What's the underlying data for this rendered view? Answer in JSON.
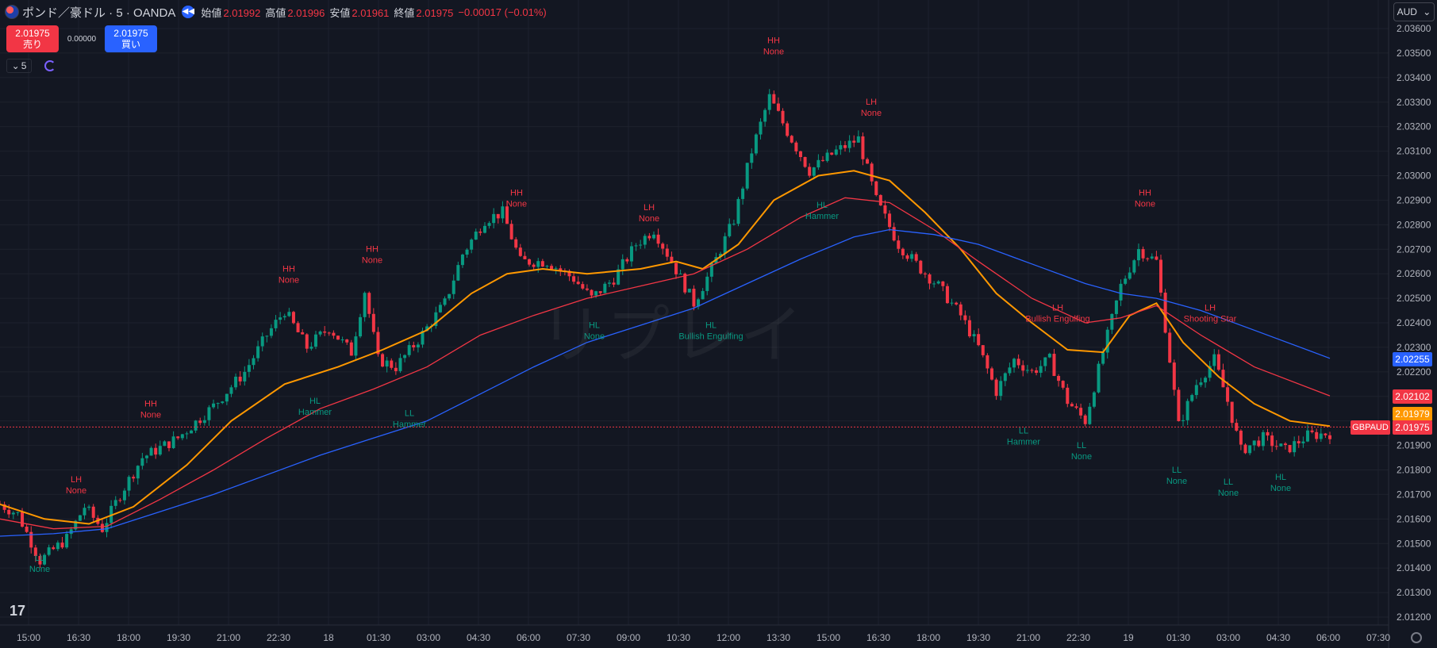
{
  "header": {
    "symbol_title": "ポンド／豪ドル · 5 · OANDA",
    "open_label": "始値",
    "open": "2.01992",
    "high_label": "高値",
    "high": "2.01996",
    "low_label": "安値",
    "low": "2.01961",
    "close_label": "終値",
    "close": "2.01975",
    "change": "−0.00017 (−0.01%)"
  },
  "trade": {
    "sell_price": "2.01975",
    "sell_label": "売り",
    "spread": "0.00000",
    "buy_price": "2.01975",
    "buy_label": "買い"
  },
  "interval": "5",
  "currency": "AUD",
  "watermark": "リプレイ",
  "pair_tag": "GBPAUD",
  "colors": {
    "up": "#089981",
    "down": "#f23645",
    "ema_fast": "#ff9800",
    "ma_mid": "#f23645",
    "ma_slow": "#2962ff",
    "bg": "#131722",
    "grid": "#1e222d"
  },
  "price_tags": [
    {
      "value": "2.02255",
      "color": "#2962ff"
    },
    {
      "value": "2.02102",
      "color": "#f23645"
    },
    {
      "value": "2.01979",
      "color": "#ff9800"
    },
    {
      "value": "2.01975",
      "color": "#f23645"
    }
  ],
  "chart_data": {
    "type": "candlestick",
    "symbol": "GBPAUD",
    "y_axis_ticks": [
      "2.03600",
      "2.03500",
      "2.03400",
      "2.03300",
      "2.03200",
      "2.03100",
      "2.03000",
      "2.02900",
      "2.02800",
      "2.02700",
      "2.02600",
      "2.02500",
      "2.02400",
      "2.02300",
      "2.02200",
      "2.02100",
      "2.02000",
      "2.01900",
      "2.01800",
      "2.01700",
      "2.01600",
      "2.01500",
      "2.01400",
      "2.01300",
      "2.01200"
    ],
    "ylim": [
      2.0115,
      2.0365
    ],
    "x_axis_ticks": [
      "15:00",
      "16:30",
      "18:00",
      "19:30",
      "21:00",
      "22:30",
      "18",
      "01:30",
      "03:00",
      "04:30",
      "06:00",
      "07:30",
      "09:00",
      "10:30",
      "12:00",
      "13:30",
      "15:00",
      "16:30",
      "18:00",
      "19:30",
      "21:00",
      "22:30",
      "19",
      "01:30",
      "03:00",
      "04:30",
      "06:00",
      "07:30"
    ],
    "price_path": [
      [
        0,
        2.0166
      ],
      [
        20,
        2.0162
      ],
      [
        45,
        2.0143
      ],
      [
        75,
        2.0152
      ],
      [
        95,
        2.0165
      ],
      [
        115,
        2.0156
      ],
      [
        135,
        2.017
      ],
      [
        160,
        2.0185
      ],
      [
        200,
        2.0193
      ],
      [
        240,
        2.0206
      ],
      [
        275,
        2.022
      ],
      [
        300,
        2.0235
      ],
      [
        320,
        2.0245
      ],
      [
        345,
        2.023
      ],
      [
        370,
        2.0238
      ],
      [
        395,
        2.0228
      ],
      [
        410,
        2.0253
      ],
      [
        425,
        2.0225
      ],
      [
        445,
        2.0222
      ],
      [
        470,
        2.0233
      ],
      [
        500,
        2.0248
      ],
      [
        520,
        2.0268
      ],
      [
        545,
        2.0282
      ],
      [
        565,
        2.0285
      ],
      [
        585,
        2.0265
      ],
      [
        615,
        2.0265
      ],
      [
        645,
        2.0258
      ],
      [
        665,
        2.025
      ],
      [
        690,
        2.0258
      ],
      [
        715,
        2.0272
      ],
      [
        735,
        2.0278
      ],
      [
        755,
        2.0265
      ],
      [
        780,
        2.0248
      ],
      [
        800,
        2.0262
      ],
      [
        825,
        2.0282
      ],
      [
        845,
        2.031
      ],
      [
        865,
        2.0332
      ],
      [
        885,
        2.0318
      ],
      [
        910,
        2.0302
      ],
      [
        940,
        2.031
      ],
      [
        965,
        2.0315
      ],
      [
        985,
        2.029
      ],
      [
        1010,
        2.0272
      ],
      [
        1035,
        2.0262
      ],
      [
        1055,
        2.0255
      ],
      [
        1080,
        2.0243
      ],
      [
        1100,
        2.023
      ],
      [
        1120,
        2.0212
      ],
      [
        1140,
        2.0225
      ],
      [
        1160,
        2.022
      ],
      [
        1180,
        2.0225
      ],
      [
        1200,
        2.0208
      ],
      [
        1220,
        2.02
      ],
      [
        1240,
        2.0228
      ],
      [
        1260,
        2.0255
      ],
      [
        1280,
        2.027
      ],
      [
        1300,
        2.0265
      ],
      [
        1315,
        2.0225
      ],
      [
        1325,
        2.0198
      ],
      [
        1345,
        2.0215
      ],
      [
        1365,
        2.0225
      ],
      [
        1380,
        2.0208
      ],
      [
        1395,
        2.0188
      ],
      [
        1420,
        2.0193
      ],
      [
        1445,
        2.0188
      ],
      [
        1470,
        2.0194
      ],
      [
        1495,
        2.0195
      ]
    ],
    "series": [
      {
        "name": "EMA fast",
        "color": "#ff9800",
        "points": [
          [
            0,
            2.0166
          ],
          [
            50,
            2.016
          ],
          [
            100,
            2.0158
          ],
          [
            150,
            2.0165
          ],
          [
            210,
            2.0182
          ],
          [
            260,
            2.02
          ],
          [
            320,
            2.0215
          ],
          [
            380,
            2.0222
          ],
          [
            430,
            2.0229
          ],
          [
            480,
            2.0237
          ],
          [
            530,
            2.0252
          ],
          [
            570,
            2.026
          ],
          [
            610,
            2.0262
          ],
          [
            660,
            2.026
          ],
          [
            720,
            2.0262
          ],
          [
            760,
            2.0265
          ],
          [
            790,
            2.0262
          ],
          [
            830,
            2.0272
          ],
          [
            870,
            2.029
          ],
          [
            920,
            2.03
          ],
          [
            960,
            2.0302
          ],
          [
            1000,
            2.0298
          ],
          [
            1040,
            2.0285
          ],
          [
            1080,
            2.027
          ],
          [
            1120,
            2.0252
          ],
          [
            1160,
            2.024
          ],
          [
            1200,
            2.0229
          ],
          [
            1240,
            2.0228
          ],
          [
            1270,
            2.0243
          ],
          [
            1300,
            2.0248
          ],
          [
            1330,
            2.0232
          ],
          [
            1370,
            2.0218
          ],
          [
            1410,
            2.0207
          ],
          [
            1450,
            2.02
          ],
          [
            1495,
            2.01979
          ]
        ]
      },
      {
        "name": "MA mid",
        "color": "#f23645",
        "points": [
          [
            0,
            2.016
          ],
          [
            60,
            2.0156
          ],
          [
            120,
            2.0157
          ],
          [
            180,
            2.0168
          ],
          [
            240,
            2.018
          ],
          [
            300,
            2.0193
          ],
          [
            360,
            2.0205
          ],
          [
            420,
            2.0213
          ],
          [
            480,
            2.0222
          ],
          [
            540,
            2.0235
          ],
          [
            600,
            2.0243
          ],
          [
            660,
            2.025
          ],
          [
            720,
            2.0255
          ],
          [
            780,
            2.026
          ],
          [
            840,
            2.027
          ],
          [
            900,
            2.0283
          ],
          [
            950,
            2.0291
          ],
          [
            1000,
            2.0289
          ],
          [
            1050,
            2.0278
          ],
          [
            1100,
            2.0265
          ],
          [
            1160,
            2.025
          ],
          [
            1220,
            2.024
          ],
          [
            1260,
            2.0242
          ],
          [
            1300,
            2.0247
          ],
          [
            1350,
            2.0235
          ],
          [
            1410,
            2.0222
          ],
          [
            1495,
            2.02102
          ]
        ]
      },
      {
        "name": "MA slow",
        "color": "#2962ff",
        "points": [
          [
            0,
            2.0153
          ],
          [
            60,
            2.0154
          ],
          [
            120,
            2.0156
          ],
          [
            180,
            2.0163
          ],
          [
            240,
            2.017
          ],
          [
            300,
            2.0178
          ],
          [
            360,
            2.0186
          ],
          [
            420,
            2.0193
          ],
          [
            480,
            2.02
          ],
          [
            540,
            2.0211
          ],
          [
            600,
            2.0222
          ],
          [
            660,
            2.0232
          ],
          [
            720,
            2.0239
          ],
          [
            780,
            2.0246
          ],
          [
            840,
            2.0256
          ],
          [
            900,
            2.0266
          ],
          [
            960,
            2.0275
          ],
          [
            1000,
            2.0278
          ],
          [
            1050,
            2.0276
          ],
          [
            1100,
            2.0272
          ],
          [
            1160,
            2.0264
          ],
          [
            1220,
            2.0256
          ],
          [
            1260,
            2.0252
          ],
          [
            1300,
            2.025
          ],
          [
            1350,
            2.0245
          ],
          [
            1410,
            2.0237
          ],
          [
            1495,
            2.02255
          ]
        ]
      }
    ],
    "annotations": [
      {
        "text1": "HH",
        "text2": "None",
        "bar": 975,
        "price": 2.0352,
        "color": "#f23645",
        "pos": "above"
      },
      {
        "text1": "LH",
        "text2": "None",
        "bar": 1098,
        "price": 2.0327,
        "color": "#f23645",
        "pos": "above"
      },
      {
        "text1": "HH",
        "text2": "None",
        "bar": 651,
        "price": 2.029,
        "color": "#f23645",
        "pos": "above"
      },
      {
        "text1": "LH",
        "text2": "None",
        "bar": 818,
        "price": 2.0284,
        "color": "#f23645",
        "pos": "above"
      },
      {
        "text1": "HH",
        "text2": "None",
        "bar": 1443,
        "price": 2.029,
        "color": "#f23645",
        "pos": "above"
      },
      {
        "text1": "HH",
        "text2": "None",
        "bar": 469,
        "price": 2.0267,
        "color": "#f23645",
        "pos": "above"
      },
      {
        "text1": "HH",
        "text2": "None",
        "bar": 364,
        "price": 2.0259,
        "color": "#f23645",
        "pos": "above"
      },
      {
        "text1": "HH",
        "text2": "None",
        "bar": 190,
        "price": 2.0204,
        "color": "#f23645",
        "pos": "above"
      },
      {
        "text1": "LH",
        "text2": "None",
        "bar": 96,
        "price": 2.0173,
        "color": "#f23645",
        "pos": "above"
      },
      {
        "text1": "LH",
        "text2": "Bullish Engulfing",
        "bar": 1333,
        "price": 2.0243,
        "color": "#f23645",
        "pos": "above"
      },
      {
        "text1": "LH",
        "text2": "Shooting Star",
        "bar": 1525,
        "price": 2.0243,
        "color": "#f23645",
        "pos": "above"
      },
      {
        "text1": "HL",
        "text2": "Hammer",
        "bar": 1036,
        "price": 2.0285,
        "color": "#089981",
        "pos": "below"
      },
      {
        "text1": "HL",
        "text2": "None",
        "bar": 749,
        "price": 2.0236,
        "color": "#089981",
        "pos": "below"
      },
      {
        "text1": "HL",
        "text2": "Bullish Engulfing",
        "bar": 896,
        "price": 2.0236,
        "color": "#089981",
        "pos": "below"
      },
      {
        "text1": "HL",
        "text2": "Hammer",
        "bar": 397,
        "price": 2.0205,
        "color": "#089981",
        "pos": "below"
      },
      {
        "text1": "LL",
        "text2": "Hammer",
        "bar": 516,
        "price": 2.02,
        "color": "#089981",
        "pos": "below"
      },
      {
        "text1": "LL",
        "text2": "Hammer",
        "bar": 1290,
        "price": 2.0193,
        "color": "#089981",
        "pos": "below"
      },
      {
        "text1": "LL",
        "text2": "None",
        "bar": 1363,
        "price": 2.0187,
        "color": "#089981",
        "pos": "below"
      },
      {
        "text1": "LL",
        "text2": "None",
        "bar": 1483,
        "price": 2.0177,
        "color": "#089981",
        "pos": "below"
      },
      {
        "text1": "LL",
        "text2": "None",
        "bar": 1548,
        "price": 2.0172,
        "color": "#089981",
        "pos": "below"
      },
      {
        "text1": "HL",
        "text2": "None",
        "bar": 1614,
        "price": 2.0174,
        "color": "#089981",
        "pos": "below"
      },
      {
        "text1": "LL",
        "text2": "None",
        "bar": 50,
        "price": 2.0141,
        "color": "#089981",
        "pos": "below"
      }
    ],
    "last_price": 2.01975
  }
}
